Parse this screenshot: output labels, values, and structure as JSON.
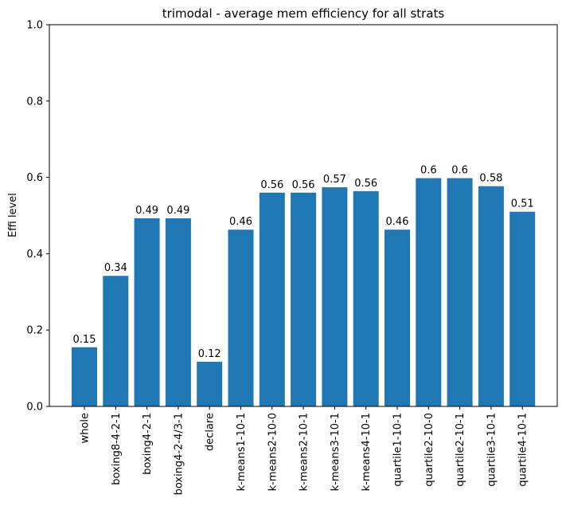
{
  "chart_data": {
    "type": "bar",
    "title": "trimodal - average mem efficiency for all strats",
    "xlabel": "",
    "ylabel": "Effi level",
    "ylim": [
      0,
      1
    ],
    "yticks": [
      "0.0",
      "0.2",
      "0.4",
      "0.6",
      "0.8",
      "1.0"
    ],
    "bar_color": "#1f77b4",
    "grid": false,
    "categories": [
      "whole",
      "boxing8-4-2-1",
      "boxing4-2-1",
      "boxing4-2-4/3-1",
      "declare",
      "k-means1-10-1",
      "k-means2-10-0",
      "k-means2-10-1",
      "k-means3-10-1",
      "k-means4-10-1",
      "quartile1-10-1",
      "quartile2-10-0",
      "quartile2-10-1",
      "quartile3-10-1",
      "quartile4-10-1"
    ],
    "values": [
      0.155,
      0.342,
      0.493,
      0.493,
      0.117,
      0.463,
      0.56,
      0.56,
      0.574,
      0.564,
      0.463,
      0.598,
      0.598,
      0.577,
      0.51
    ],
    "data_labels": [
      "0.15",
      "0.34",
      "0.49",
      "0.49",
      "0.12",
      "0.46",
      "0.56",
      "0.56",
      "0.57",
      "0.56",
      "0.46",
      "0.6",
      "0.6",
      "0.58",
      "0.51"
    ]
  }
}
